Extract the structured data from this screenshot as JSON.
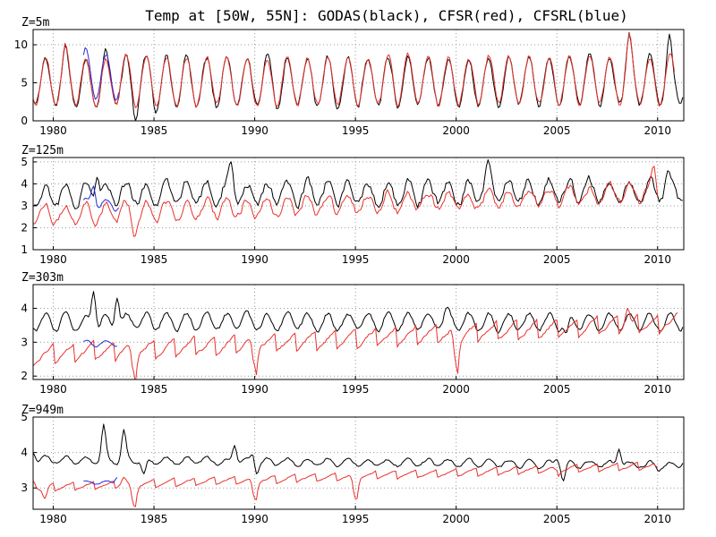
{
  "chart_data": {
    "type": "line",
    "title": "Temp at [50W, 55N]: GODAS(black), CFSR(red), CFSRL(blue)",
    "xlim": [
      1979.0,
      2011.3
    ],
    "x_ticks": [
      1980,
      1985,
      1990,
      1995,
      2000,
      2005,
      2010
    ],
    "colors": {
      "GODAS": "#000000",
      "CFSR": "#e8322d",
      "CFSRL": "#2b2bd6"
    },
    "panels": [
      {
        "label": "Z=5m",
        "ylim": [
          0,
          12
        ],
        "y_ticks": [
          0,
          5,
          10
        ],
        "zero_line": true,
        "series": [
          {
            "key": "GODAS",
            "style": "seasonal",
            "start": 1979.0,
            "end": 2011.3,
            "mean": 5.0,
            "amplitude": 3.2,
            "trend": 0.01,
            "jitter": 0.7,
            "anchors": [
              [
                1980.6,
                10.0
              ],
              [
                1982.6,
                9.5
              ],
              [
                1984.1,
                0.0
              ],
              [
                1985.1,
                1.0
              ],
              [
                2008.6,
                11.6
              ],
              [
                2010.6,
                11.4
              ]
            ]
          },
          {
            "key": "CFSR",
            "style": "seasonal",
            "start": 1979.0,
            "end": 2010.9,
            "mean": 5.1,
            "amplitude": 3.2,
            "trend": 0.01,
            "jitter": 0.6,
            "anchors": [
              [
                1980.6,
                10.2
              ],
              [
                2008.6,
                11.5
              ]
            ]
          },
          {
            "key": "CFSRL",
            "style": "seasonal",
            "start": 1981.5,
            "end": 1983.3,
            "mean": 5.8,
            "amplitude": 3.0,
            "trend": 0.0,
            "jitter": 0.4,
            "anchors": [
              [
                1981.6,
                9.6
              ]
            ]
          }
        ]
      },
      {
        "label": "Z=125m",
        "ylim": [
          1,
          5.2
        ],
        "y_ticks": [
          1,
          2,
          3,
          4,
          5
        ],
        "zero_line": false,
        "series": [
          {
            "key": "GODAS",
            "style": "seasonal",
            "start": 1979.0,
            "end": 2011.3,
            "mean": 3.5,
            "amplitude": 0.5,
            "trend": 0.006,
            "jitter": 0.35,
            "anchors": [
              [
                1982.2,
                4.3
              ],
              [
                1988.8,
                5.0
              ],
              [
                2001.6,
                5.1
              ],
              [
                2010.5,
                4.6
              ]
            ]
          },
          {
            "key": "CFSR",
            "style": "seasonal",
            "start": 1979.0,
            "end": 2010.0,
            "mean": 2.6,
            "amplitude": 0.4,
            "trend": 0.03,
            "jitter": 0.3,
            "anchors": [
              [
                1984.0,
                1.6
              ],
              [
                2009.8,
                4.8
              ]
            ]
          },
          {
            "key": "CFSRL",
            "style": "seasonal",
            "start": 1981.5,
            "end": 1983.3,
            "mean": 3.1,
            "amplitude": 0.3,
            "trend": 0.0,
            "jitter": 0.15,
            "anchors": [
              [
                1982.0,
                3.9
              ]
            ]
          }
        ]
      },
      {
        "label": "Z=303m",
        "ylim": [
          1.9,
          4.7
        ],
        "y_ticks": [
          2,
          3,
          4
        ],
        "zero_line": false,
        "series": [
          {
            "key": "GODAS",
            "style": "seasonal",
            "start": 1979.0,
            "end": 2011.3,
            "mean": 3.6,
            "amplitude": 0.25,
            "trend": 0.0,
            "jitter": 0.1,
            "anchors": [
              [
                1982.0,
                4.5
              ],
              [
                1983.2,
                4.3
              ],
              [
                1984.0,
                3.5
              ],
              [
                1999.5,
                4.0
              ],
              [
                2005.5,
                3.3
              ]
            ]
          },
          {
            "key": "CFSR",
            "style": "sawtooth",
            "start": 1979.0,
            "end": 2011.0,
            "mean": 2.6,
            "amplitude": 0.3,
            "trend": 0.03,
            "jitter": 0.08,
            "anchors": [
              [
                1983.5,
                2.8
              ],
              [
                1984.0,
                2.1
              ],
              [
                1990.0,
                2.3
              ],
              [
                2000.0,
                2.3
              ],
              [
                2008.5,
                4.0
              ]
            ]
          },
          {
            "key": "CFSRL",
            "style": "seasonal",
            "start": 1981.5,
            "end": 1983.2,
            "mean": 2.95,
            "amplitude": 0.1,
            "trend": 0.0,
            "jitter": 0.05,
            "anchors": []
          }
        ]
      },
      {
        "label": "Z=949m",
        "ylim": [
          2.4,
          5.0
        ],
        "y_ticks": [
          3,
          4,
          5
        ],
        "zero_line": false,
        "series": [
          {
            "key": "GODAS",
            "style": "seasonal",
            "start": 1979.0,
            "end": 2011.3,
            "mean": 3.8,
            "amplitude": 0.1,
            "trend": -0.005,
            "jitter": 0.06,
            "anchors": [
              [
                1979.0,
                4.0
              ],
              [
                1982.5,
                4.8
              ],
              [
                1983.5,
                4.65
              ],
              [
                1984.5,
                3.4
              ],
              [
                1989.0,
                4.2
              ],
              [
                1989.9,
                4.0
              ],
              [
                1990.1,
                3.4
              ],
              [
                2005.0,
                3.8
              ],
              [
                2005.3,
                3.2
              ],
              [
                2008.1,
                4.1
              ],
              [
                2010.0,
                3.5
              ],
              [
                2011.3,
                3.7
              ]
            ]
          },
          {
            "key": "CFSR",
            "style": "sawtooth",
            "start": 1979.0,
            "end": 2010.0,
            "mean": 3.0,
            "amplitude": 0.12,
            "trend": 0.02,
            "jitter": 0.03,
            "anchors": [
              [
                1979.0,
                3.2
              ],
              [
                1979.6,
                2.7
              ],
              [
                1983.5,
                3.3
              ],
              [
                1984.0,
                2.5
              ],
              [
                1990.0,
                2.7
              ],
              [
                1995.0,
                2.7
              ],
              [
                2005.0,
                3.5
              ],
              [
                2010.0,
                3.6
              ]
            ]
          },
          {
            "key": "CFSRL",
            "style": "seasonal",
            "start": 1981.5,
            "end": 1983.2,
            "mean": 3.15,
            "amplitude": 0.05,
            "trend": 0.0,
            "jitter": 0.03,
            "anchors": [
              [
                1983.2,
                3.3
              ]
            ]
          }
        ]
      }
    ]
  }
}
